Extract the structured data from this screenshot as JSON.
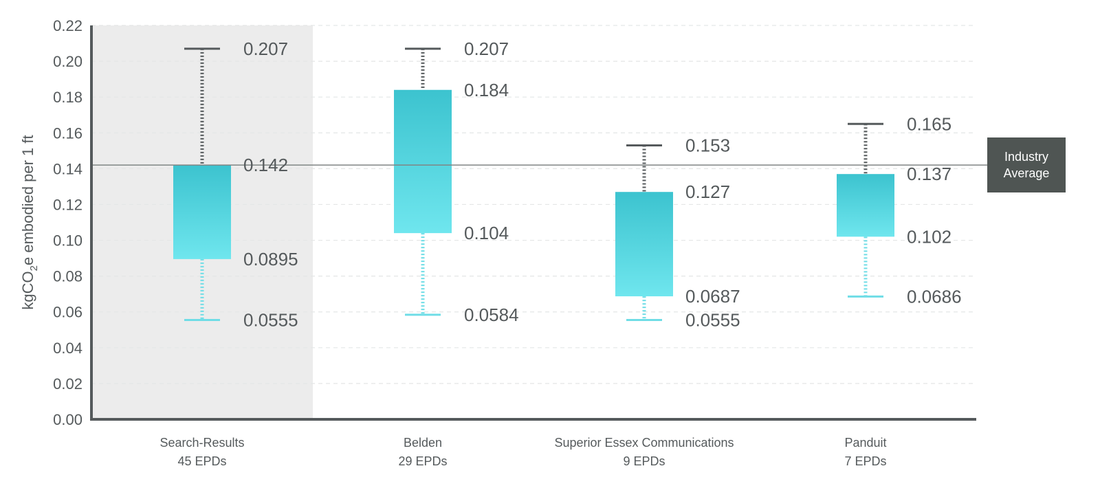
{
  "chart_data": {
    "type": "box",
    "ylabel": {
      "prefix": "kgCO",
      "subscript": "2",
      "suffix": "e embodied per 1 ft"
    },
    "ylim": [
      0,
      0.22
    ],
    "yticks": [
      "0.00",
      "0.02",
      "0.04",
      "0.06",
      "0.08",
      "0.10",
      "0.12",
      "0.14",
      "0.16",
      "0.18",
      "0.20",
      "0.22"
    ],
    "grid": "horizontal dashed",
    "highlighted_category": "Search-Results",
    "reference_line": {
      "value": 0.142,
      "label_line1": "Industry",
      "label_line2": "Average"
    },
    "categories": [
      {
        "name": "Search-Results",
        "count_label": "45 EPDs",
        "whisker_high": 0.207,
        "box_high": 0.142,
        "box_low": 0.0895,
        "whisker_low": 0.0555,
        "labels": [
          "0.207",
          "0.142",
          "0.0895",
          "0.0555"
        ]
      },
      {
        "name": "Belden",
        "count_label": "29 EPDs",
        "whisker_high": 0.207,
        "box_high": 0.184,
        "box_low": 0.104,
        "whisker_low": 0.0584,
        "labels": [
          "0.207",
          "0.184",
          "0.104",
          "0.0584"
        ]
      },
      {
        "name": "Superior Essex Communications",
        "count_label": "9 EPDs",
        "whisker_high": 0.153,
        "box_high": 0.127,
        "box_low": 0.0687,
        "whisker_low": 0.0555,
        "labels": [
          "0.153",
          "0.127",
          "0.0687",
          "0.0555"
        ]
      },
      {
        "name": "Panduit",
        "count_label": "7 EPDs",
        "whisker_high": 0.165,
        "box_high": 0.137,
        "box_low": 0.102,
        "whisker_low": 0.0686,
        "labels": [
          "0.165",
          "0.137",
          "0.102",
          "0.0686"
        ]
      }
    ],
    "colors": {
      "box_top": "#3cc3cf",
      "box_bottom": "#6fe6ee",
      "whisker_upper": "#555a5c",
      "whisker_lower": "#6fdde6",
      "axis": "#555a5c",
      "highlight_bg": "#ececec",
      "reference_line": "#7f8584",
      "avg_box": "#4f5553"
    }
  }
}
